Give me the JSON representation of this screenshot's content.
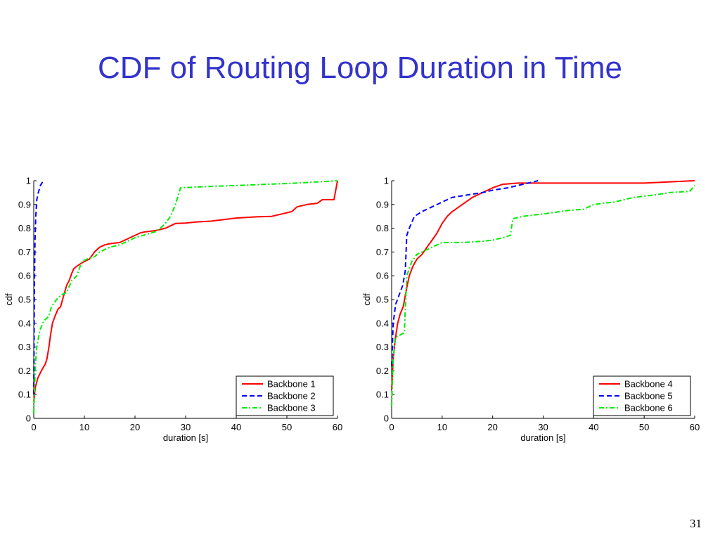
{
  "slide": {
    "title": "CDF of Routing Loop Duration in Time",
    "page_number": "31"
  },
  "chart_data": [
    {
      "type": "line",
      "title": "",
      "xlabel": "duration [s]",
      "ylabel": "cdf",
      "xlim": [
        0,
        60
      ],
      "ylim": [
        0,
        1
      ],
      "xticks": [
        "0",
        "10",
        "20",
        "30",
        "40",
        "50",
        "60"
      ],
      "yticks": [
        "0",
        "0.1",
        "0.2",
        "0.3",
        "0.4",
        "0.5",
        "0.6",
        "0.7",
        "0.8",
        "0.9",
        "1"
      ],
      "grid": false,
      "legend_position": "bottom-right",
      "series": [
        {
          "name": "Backbone 1",
          "color": "#ff0000",
          "style": "solid",
          "points": [
            [
              0,
              0.07
            ],
            [
              0.3,
              0.13
            ],
            [
              0.8,
              0.17
            ],
            [
              1.5,
              0.2
            ],
            [
              2.3,
              0.23
            ],
            [
              2.6,
              0.25
            ],
            [
              3,
              0.3
            ],
            [
              3.3,
              0.35
            ],
            [
              3.7,
              0.4
            ],
            [
              4.2,
              0.43
            ],
            [
              4.8,
              0.46
            ],
            [
              5.3,
              0.47
            ],
            [
              5.7,
              0.5
            ],
            [
              6.1,
              0.53
            ],
            [
              6.5,
              0.56
            ],
            [
              7,
              0.58
            ],
            [
              7.5,
              0.61
            ],
            [
              7.9,
              0.63
            ],
            [
              8.5,
              0.64
            ],
            [
              9.2,
              0.65
            ],
            [
              10,
              0.66
            ],
            [
              11,
              0.67
            ],
            [
              12,
              0.7
            ],
            [
              13,
              0.72
            ],
            [
              14,
              0.73
            ],
            [
              15,
              0.735
            ],
            [
              17,
              0.74
            ],
            [
              18,
              0.75
            ],
            [
              19,
              0.76
            ],
            [
              21,
              0.78
            ],
            [
              22,
              0.785
            ],
            [
              24,
              0.79
            ],
            [
              26,
              0.8
            ],
            [
              27,
              0.81
            ],
            [
              28,
              0.82
            ],
            [
              30,
              0.822
            ],
            [
              32,
              0.826
            ],
            [
              35,
              0.83
            ],
            [
              37,
              0.835
            ],
            [
              40,
              0.843
            ],
            [
              44,
              0.848
            ],
            [
              47,
              0.85
            ],
            [
              49,
              0.86
            ],
            [
              51,
              0.87
            ],
            [
              52,
              0.89
            ],
            [
              54,
              0.9
            ],
            [
              56,
              0.905
            ],
            [
              57,
              0.92
            ],
            [
              59.3,
              0.92
            ],
            [
              60,
              1.0
            ]
          ]
        },
        {
          "name": "Backbone 2",
          "color": "#0000ff",
          "style": "dashed",
          "points": [
            [
              0,
              0.1
            ],
            [
              0.05,
              0.3
            ],
            [
              0.12,
              0.55
            ],
            [
              0.25,
              0.75
            ],
            [
              0.4,
              0.85
            ],
            [
              0.6,
              0.92
            ],
            [
              0.9,
              0.95
            ],
            [
              1.3,
              0.98
            ],
            [
              1.9,
              1.0
            ]
          ]
        },
        {
          "name": "Backbone 3",
          "color": "#00ee00",
          "style": "dashdot",
          "points": [
            [
              0,
              0.02
            ],
            [
              0.3,
              0.22
            ],
            [
              0.6,
              0.3
            ],
            [
              1.2,
              0.37
            ],
            [
              2,
              0.41
            ],
            [
              3,
              0.43
            ],
            [
              3.5,
              0.47
            ],
            [
              4.5,
              0.5
            ],
            [
              5.5,
              0.52
            ],
            [
              6.5,
              0.53
            ],
            [
              7.5,
              0.58
            ],
            [
              8.5,
              0.6
            ],
            [
              9.5,
              0.66
            ],
            [
              10.5,
              0.67
            ],
            [
              12,
              0.68
            ],
            [
              13,
              0.7
            ],
            [
              15,
              0.72
            ],
            [
              17,
              0.73
            ],
            [
              20,
              0.76
            ],
            [
              24,
              0.785
            ],
            [
              25,
              0.8
            ],
            [
              26,
              0.82
            ],
            [
              27,
              0.85
            ],
            [
              28,
              0.9
            ],
            [
              29,
              0.97
            ],
            [
              34,
              0.975
            ],
            [
              40,
              0.98
            ],
            [
              46,
              0.985
            ],
            [
              52,
              0.99
            ],
            [
              60,
              1.0
            ]
          ]
        }
      ]
    },
    {
      "type": "line",
      "title": "",
      "xlabel": "duration [s]",
      "ylabel": "cdf",
      "xlim": [
        0,
        60
      ],
      "ylim": [
        0,
        1
      ],
      "xticks": [
        "0",
        "10",
        "20",
        "30",
        "40",
        "50",
        "60"
      ],
      "yticks": [
        "0",
        "0.1",
        "0.2",
        "0.3",
        "0.4",
        "0.5",
        "0.6",
        "0.7",
        "0.8",
        "0.9",
        "1"
      ],
      "grid": false,
      "legend_position": "bottom-right",
      "series": [
        {
          "name": "Backbone 4",
          "color": "#ff0000",
          "style": "solid",
          "points": [
            [
              0,
              0.12
            ],
            [
              0.3,
              0.25
            ],
            [
              0.7,
              0.33
            ],
            [
              1.2,
              0.4
            ],
            [
              1.7,
              0.44
            ],
            [
              2.3,
              0.47
            ],
            [
              3,
              0.55
            ],
            [
              3.5,
              0.6
            ],
            [
              4.2,
              0.64
            ],
            [
              5,
              0.67
            ],
            [
              6,
              0.69
            ],
            [
              7,
              0.72
            ],
            [
              8,
              0.75
            ],
            [
              9,
              0.78
            ],
            [
              10,
              0.82
            ],
            [
              11,
              0.85
            ],
            [
              12,
              0.87
            ],
            [
              14,
              0.9
            ],
            [
              16,
              0.93
            ],
            [
              18,
              0.95
            ],
            [
              20,
              0.97
            ],
            [
              22,
              0.985
            ],
            [
              25,
              0.99
            ],
            [
              30,
              0.99
            ],
            [
              40,
              0.99
            ],
            [
              50,
              0.99
            ],
            [
              60,
              1.0
            ]
          ]
        },
        {
          "name": "Backbone 5",
          "color": "#0000ff",
          "style": "dashed",
          "points": [
            [
              0,
              0.22
            ],
            [
              0.3,
              0.4
            ],
            [
              0.8,
              0.48
            ],
            [
              1.5,
              0.52
            ],
            [
              2.2,
              0.56
            ],
            [
              2.7,
              0.62
            ],
            [
              3,
              0.77
            ],
            [
              3.5,
              0.8
            ],
            [
              4.5,
              0.85
            ],
            [
              6,
              0.87
            ],
            [
              8,
              0.89
            ],
            [
              10,
              0.91
            ],
            [
              12,
              0.93
            ],
            [
              15,
              0.94
            ],
            [
              18,
              0.95
            ],
            [
              20,
              0.96
            ],
            [
              23,
              0.97
            ],
            [
              26,
              0.985
            ],
            [
              29,
              1.0
            ]
          ]
        },
        {
          "name": "Backbone 6",
          "color": "#00ee00",
          "style": "dashdot",
          "points": [
            [
              0,
              0.05
            ],
            [
              0.3,
              0.25
            ],
            [
              0.7,
              0.34
            ],
            [
              2.5,
              0.36
            ],
            [
              3,
              0.6
            ],
            [
              4,
              0.66
            ],
            [
              5,
              0.69
            ],
            [
              6,
              0.7
            ],
            [
              7,
              0.71
            ],
            [
              8,
              0.72
            ],
            [
              9,
              0.73
            ],
            [
              10,
              0.74
            ],
            [
              14,
              0.74
            ],
            [
              18,
              0.745
            ],
            [
              20,
              0.75
            ],
            [
              22,
              0.76
            ],
            [
              23.5,
              0.77
            ],
            [
              24,
              0.84
            ],
            [
              26,
              0.85
            ],
            [
              30,
              0.86
            ],
            [
              35,
              0.875
            ],
            [
              38,
              0.88
            ],
            [
              40,
              0.9
            ],
            [
              44,
              0.91
            ],
            [
              48,
              0.93
            ],
            [
              52,
              0.94
            ],
            [
              55,
              0.95
            ],
            [
              59,
              0.955
            ],
            [
              60,
              0.98
            ]
          ]
        }
      ]
    }
  ]
}
